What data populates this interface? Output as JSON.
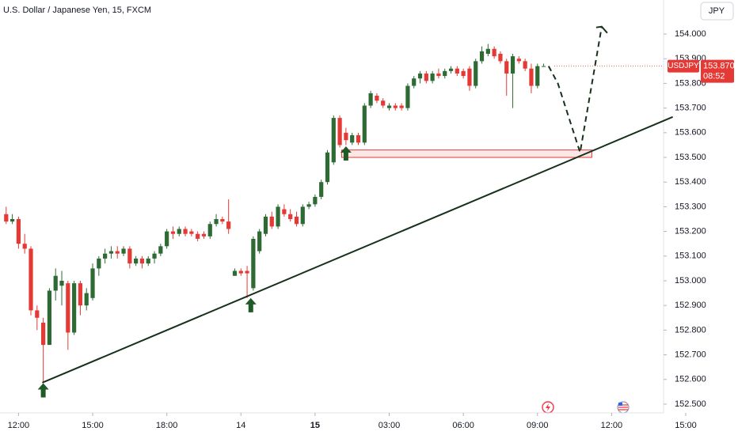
{
  "chart_data": {
    "type": "candlestick",
    "title": "U.S. Dollar / Japanese Yen, 15, FXCM",
    "currency": "JPY",
    "symbol": "USDJPY",
    "last_price": {
      "value": 153.87,
      "label": "153.870"
    },
    "countdown": "08:52",
    "up_color": "#2e6b34",
    "down_color": "#e53935",
    "drawing_color": "#16301a",
    "x": [
      -2,
      -1,
      0,
      1,
      2,
      3,
      4,
      5,
      6,
      7,
      8,
      9,
      10,
      11,
      12,
      13,
      14,
      15,
      16,
      17,
      18,
      19,
      20,
      21,
      22,
      23,
      24,
      25,
      26,
      27,
      28,
      29,
      30,
      31,
      32,
      33,
      34,
      35,
      36,
      37,
      38,
      39,
      40,
      41,
      42,
      43,
      44,
      45,
      46,
      47,
      48,
      49,
      50,
      51,
      52,
      53,
      54,
      55,
      56,
      57,
      58,
      59,
      60,
      61,
      62,
      63,
      64,
      65,
      66,
      67,
      68,
      69,
      70,
      71,
      72,
      73,
      74,
      75,
      76,
      77,
      78,
      79,
      80,
      81,
      82,
      83,
      84,
      85
    ],
    "ohlc": [
      [
        153.27,
        153.3,
        153.23,
        153.24
      ],
      [
        153.24,
        153.27,
        153.23,
        153.25
      ],
      [
        153.25,
        153.26,
        153.13,
        153.15
      ],
      [
        153.15,
        153.19,
        153.11,
        153.13
      ],
      [
        153.13,
        153.14,
        152.86,
        152.88
      ],
      [
        152.88,
        152.9,
        152.8,
        152.85
      ],
      [
        152.83,
        152.85,
        152.59,
        152.74
      ],
      [
        152.74,
        152.97,
        152.74,
        152.96
      ],
      [
        152.96,
        153.05,
        152.92,
        153.02
      ],
      [
        152.98,
        153.04,
        152.9,
        153.0
      ],
      [
        152.99,
        153.0,
        152.72,
        152.79
      ],
      [
        152.79,
        153.0,
        152.78,
        152.99
      ],
      [
        152.99,
        153.0,
        152.86,
        152.9
      ],
      [
        152.9,
        152.97,
        152.88,
        152.95
      ],
      [
        152.93,
        153.07,
        152.92,
        153.05
      ],
      [
        153.05,
        153.1,
        153.02,
        153.09
      ],
      [
        153.09,
        153.13,
        153.07,
        153.11
      ],
      [
        153.11,
        153.14,
        153.09,
        153.12
      ],
      [
        153.12,
        153.14,
        153.09,
        153.11
      ],
      [
        153.11,
        153.14,
        153.1,
        153.13
      ],
      [
        153.13,
        153.14,
        153.05,
        153.07
      ],
      [
        153.07,
        153.1,
        153.06,
        153.09
      ],
      [
        153.09,
        153.1,
        153.05,
        153.07
      ],
      [
        153.07,
        153.1,
        153.06,
        153.09
      ],
      [
        153.09,
        153.12,
        153.07,
        153.11
      ],
      [
        153.11,
        153.15,
        153.1,
        153.14
      ],
      [
        153.14,
        153.21,
        153.13,
        153.2
      ],
      [
        153.2,
        153.22,
        153.17,
        153.19
      ],
      [
        153.19,
        153.22,
        153.18,
        153.21
      ],
      [
        153.21,
        153.22,
        153.18,
        153.19
      ],
      [
        153.2,
        153.21,
        153.18,
        153.19
      ],
      [
        153.19,
        153.2,
        153.16,
        153.17
      ],
      [
        153.19,
        153.2,
        153.17,
        153.18
      ],
      [
        153.18,
        153.24,
        153.17,
        153.23
      ],
      [
        153.23,
        153.27,
        153.22,
        153.25
      ],
      [
        153.25,
        153.26,
        153.23,
        153.24
      ],
      [
        153.24,
        153.33,
        153.19,
        153.21
      ],
      [
        153.02,
        153.05,
        153.02,
        153.04
      ],
      [
        153.04,
        153.05,
        153.02,
        153.03
      ],
      [
        153.04,
        153.06,
        152.93,
        153.03
      ],
      [
        152.97,
        153.18,
        152.96,
        153.17
      ],
      [
        153.12,
        153.21,
        153.11,
        153.2
      ],
      [
        153.19,
        153.27,
        153.18,
        153.26
      ],
      [
        153.26,
        153.28,
        153.21,
        153.22
      ],
      [
        153.22,
        153.31,
        153.21,
        153.3
      ],
      [
        153.29,
        153.31,
        153.26,
        153.27
      ],
      [
        153.27,
        153.29,
        153.24,
        153.25
      ],
      [
        153.26,
        153.28,
        153.22,
        153.23
      ],
      [
        153.23,
        153.31,
        153.22,
        153.3
      ],
      [
        153.3,
        153.32,
        153.29,
        153.31
      ],
      [
        153.31,
        153.35,
        153.3,
        153.34
      ],
      [
        153.34,
        153.41,
        153.33,
        153.4
      ],
      [
        153.4,
        153.53,
        153.39,
        153.52
      ],
      [
        153.48,
        153.67,
        153.47,
        153.66
      ],
      [
        153.66,
        153.67,
        153.54,
        153.55
      ],
      [
        153.6,
        153.62,
        153.55,
        153.57
      ],
      [
        153.56,
        153.6,
        153.55,
        153.59
      ],
      [
        153.59,
        153.6,
        153.55,
        153.56
      ],
      [
        153.56,
        153.72,
        153.55,
        153.71
      ],
      [
        153.71,
        153.77,
        153.7,
        153.76
      ],
      [
        153.75,
        153.76,
        153.72,
        153.73
      ],
      [
        153.73,
        153.74,
        153.7,
        153.71
      ],
      [
        153.7,
        153.72,
        153.69,
        153.71
      ],
      [
        153.71,
        153.72,
        153.69,
        153.7
      ],
      [
        153.71,
        153.72,
        153.69,
        153.7
      ],
      [
        153.7,
        153.8,
        153.69,
        153.79
      ],
      [
        153.79,
        153.83,
        153.78,
        153.82
      ],
      [
        153.82,
        153.85,
        153.8,
        153.84
      ],
      [
        153.84,
        153.85,
        153.8,
        153.81
      ],
      [
        153.81,
        153.85,
        153.8,
        153.84
      ],
      [
        153.84,
        153.86,
        153.82,
        153.83
      ],
      [
        153.83,
        153.86,
        153.82,
        153.85
      ],
      [
        153.85,
        153.87,
        153.84,
        153.86
      ],
      [
        153.86,
        153.87,
        153.83,
        153.84
      ],
      [
        153.85,
        153.86,
        153.82,
        153.83
      ],
      [
        153.86,
        153.87,
        153.77,
        153.79
      ],
      [
        153.79,
        153.9,
        153.78,
        153.89
      ],
      [
        153.89,
        153.95,
        153.88,
        153.93
      ],
      [
        153.92,
        153.96,
        153.91,
        153.94
      ],
      [
        153.94,
        153.95,
        153.9,
        153.91
      ],
      [
        153.92,
        153.93,
        153.88,
        153.89
      ],
      [
        153.89,
        153.9,
        153.75,
        153.84
      ],
      [
        153.84,
        153.92,
        153.7,
        153.91
      ],
      [
        153.9,
        153.91,
        153.88,
        153.89
      ],
      [
        153.89,
        153.9,
        153.85,
        153.86
      ],
      [
        153.86,
        153.88,
        153.76,
        153.79
      ],
      [
        153.79,
        153.88,
        153.78,
        153.87
      ],
      [
        153.87,
        153.88,
        153.87,
        153.87
      ]
    ],
    "trendline": {
      "x": [
        3.85,
        105.9
      ],
      "y": [
        152.587,
        153.664
      ]
    },
    "zone": {
      "x": [
        52.3,
        92.8
      ],
      "y": [
        153.53,
        153.5
      ]
    },
    "projection": {
      "x": [
        85.8,
        87.3,
        90.9,
        94.4
      ],
      "y": [
        153.87,
        153.8,
        153.52,
        154.03
      ]
    },
    "arrows": {
      "x": [
        4,
        37.6,
        53
      ],
      "y": [
        152.585,
        152.93,
        153.545
      ]
    },
    "xlim": [
      -3,
      108
    ],
    "xticks": [
      {
        "value": 0,
        "label": "12:00"
      },
      {
        "value": 12,
        "label": "15:00"
      },
      {
        "value": 24,
        "label": "18:00"
      },
      {
        "value": 36,
        "label": "14"
      },
      {
        "value": 48,
        "label": "15"
      },
      {
        "value": 60,
        "label": "03:00"
      },
      {
        "value": 72,
        "label": "06:00"
      },
      {
        "value": 84,
        "label": "09:00"
      },
      {
        "value": 96,
        "label": "12:00"
      },
      {
        "value": 108,
        "label": "15:00"
      }
    ],
    "bold_xtick": 4,
    "ylim": [
      152.471,
      154.138
    ],
    "yticks": [
      {
        "value": 152.5,
        "label": "152.500"
      },
      {
        "value": 152.6,
        "label": "152.600"
      },
      {
        "value": 152.7,
        "label": "152.700"
      },
      {
        "value": 152.8,
        "label": "152.800"
      },
      {
        "value": 152.9,
        "label": "152.900"
      },
      {
        "value": 153.0,
        "label": "153.000"
      },
      {
        "value": 153.1,
        "label": "153.100"
      },
      {
        "value": 153.2,
        "label": "153.200"
      },
      {
        "value": 153.3,
        "label": "153.300"
      },
      {
        "value": 153.4,
        "label": "153.400"
      },
      {
        "value": 153.5,
        "label": "153.500"
      },
      {
        "value": 153.6,
        "label": "153.600"
      },
      {
        "value": 153.7,
        "label": "153.700"
      },
      {
        "value": 153.8,
        "label": "153.800"
      },
      {
        "value": 153.9,
        "label": "153.900"
      },
      {
        "value": 154.0,
        "label": "154.000"
      }
    ]
  }
}
